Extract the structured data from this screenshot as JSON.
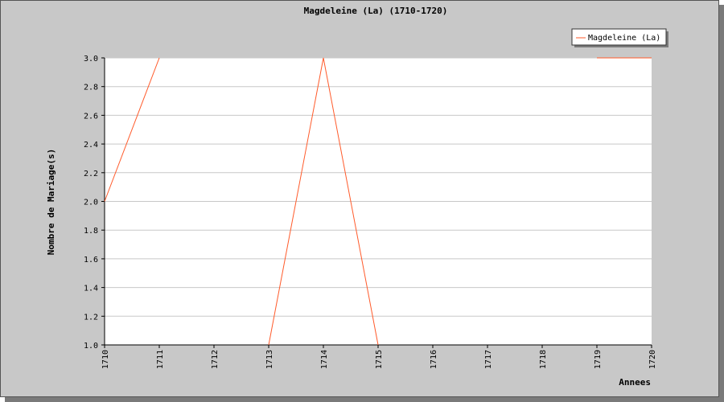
{
  "chart_data": {
    "type": "line",
    "title": "Magdeleine (La) (1710-1720)",
    "xlabel": "Annees",
    "ylabel": "Nombre de Mariage(s)",
    "x": [
      1710,
      1711,
      1712,
      1713,
      1714,
      1715,
      1716,
      1717,
      1718,
      1719,
      1720
    ],
    "x_tick_labels": [
      "1710",
      "1711",
      "1712",
      "1713",
      "1714",
      "1715",
      "1716",
      "1717",
      "1718",
      "1719",
      "1720"
    ],
    "y_tick_labels": [
      "1.0",
      "1.2",
      "1.4",
      "1.6",
      "1.8",
      "2.0",
      "2.2",
      "2.4",
      "2.6",
      "2.8",
      "3.0"
    ],
    "ylim": [
      1.0,
      3.0
    ],
    "xlim": [
      1710,
      1720
    ],
    "grid": true,
    "legend_position": "top-right",
    "series": [
      {
        "name": "Magdeleine (La)",
        "color": "#ff5a2a",
        "segments": [
          [
            [
              1710,
              2.0
            ],
            [
              1711,
              3.0
            ]
          ],
          [
            [
              1713,
              1.0
            ],
            [
              1714,
              3.0
            ],
            [
              1715,
              1.0
            ]
          ],
          [
            [
              1719,
              3.0
            ],
            [
              1720,
              3.0
            ]
          ]
        ]
      }
    ]
  }
}
